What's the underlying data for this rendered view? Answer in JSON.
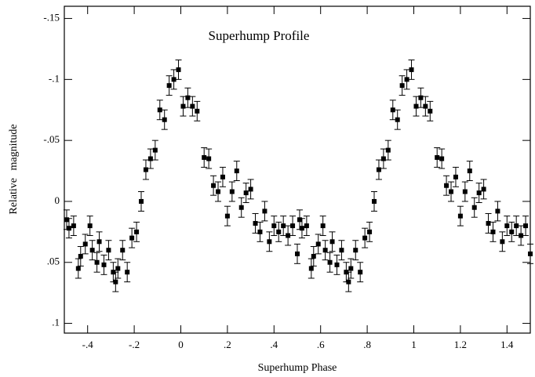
{
  "chart_data": {
    "type": "scatter",
    "title": "Superhump Profile",
    "xlabel": "Superhump Phase",
    "ylabel": "Relative magnitude",
    "x": [
      -0.49,
      -0.48,
      -0.46,
      -0.44,
      -0.43,
      -0.41,
      -0.39,
      -0.38,
      -0.36,
      -0.35,
      -0.33,
      -0.31,
      -0.29,
      -0.28,
      -0.27,
      -0.25,
      -0.23,
      -0.21,
      -0.19,
      -0.17,
      -0.15,
      -0.13,
      -0.11,
      -0.09,
      -0.07,
      -0.05,
      -0.03,
      -0.01,
      0.01,
      0.03,
      0.05,
      0.07,
      0.1,
      0.12,
      0.14,
      0.16,
      0.18,
      0.2,
      0.22,
      0.24,
      0.26,
      0.28,
      0.3,
      0.32,
      0.34,
      0.36,
      0.38,
      0.4,
      0.42,
      0.44,
      0.46,
      0.48,
      0.5,
      0.51,
      0.52,
      0.54,
      0.56,
      0.57,
      0.59,
      0.61,
      0.62,
      0.64,
      0.65,
      0.67,
      0.69,
      0.71,
      0.72,
      0.73,
      0.75,
      0.77,
      0.79,
      0.81,
      0.83,
      0.85,
      0.87,
      0.89,
      0.91,
      0.93,
      0.95,
      0.97,
      0.99,
      1.01,
      1.03,
      1.05,
      1.07,
      1.1,
      1.12,
      1.14,
      1.16,
      1.18,
      1.2,
      1.22,
      1.24,
      1.26,
      1.28,
      1.3,
      1.32,
      1.34,
      1.36,
      1.38,
      1.4,
      1.42,
      1.44,
      1.46,
      1.48,
      1.5
    ],
    "values": [
      0.015,
      0.022,
      0.02,
      0.055,
      0.045,
      0.035,
      0.02,
      0.04,
      0.05,
      0.033,
      0.052,
      0.04,
      0.058,
      0.066,
      0.055,
      0.04,
      0.058,
      0.03,
      0.025,
      0.0,
      -0.026,
      -0.035,
      -0.042,
      -0.075,
      -0.067,
      -0.095,
      -0.1,
      -0.108,
      -0.078,
      -0.085,
      -0.078,
      -0.074,
      -0.036,
      -0.035,
      -0.013,
      -0.008,
      -0.02,
      0.012,
      -0.008,
      -0.025,
      0.005,
      -0.007,
      -0.01,
      0.018,
      0.025,
      0.008,
      0.033,
      0.02,
      0.025,
      0.02,
      0.028,
      0.02,
      0.043,
      0.015,
      0.022,
      0.02,
      0.055,
      0.045,
      0.035,
      0.02,
      0.04,
      0.05,
      0.033,
      0.052,
      0.04,
      0.058,
      0.066,
      0.055,
      0.04,
      0.058,
      0.03,
      0.025,
      0.0,
      -0.026,
      -0.035,
      -0.042,
      -0.075,
      -0.067,
      -0.095,
      -0.1,
      -0.108,
      -0.078,
      -0.085,
      -0.078,
      -0.074,
      -0.036,
      -0.035,
      -0.013,
      -0.008,
      -0.02,
      0.012,
      -0.008,
      -0.025,
      0.005,
      -0.007,
      -0.01,
      0.018,
      0.025,
      0.008,
      0.033,
      0.02,
      0.025,
      0.02,
      0.028,
      0.02,
      0.043
    ],
    "error": 0.008,
    "color": "#000000",
    "xlim": [
      -0.5,
      1.5
    ],
    "ylim": [
      0.108,
      -0.16
    ],
    "y_inverted": true,
    "xticks": [
      {
        "value": -0.4,
        "label": "-.4"
      },
      {
        "value": -0.2,
        "label": "-.2"
      },
      0,
      {
        "value": 0.2,
        "label": ".2"
      },
      {
        "value": 0.4,
        "label": ".4"
      },
      {
        "value": 0.6,
        "label": ".6"
      },
      {
        "value": 0.8,
        "label": ".8"
      },
      1,
      1.2,
      1.4
    ],
    "yticks": [
      {
        "value": -0.15,
        "label": "-.15"
      },
      {
        "value": -0.1,
        "label": "-.1"
      },
      {
        "value": -0.05,
        "label": "-.05"
      },
      0,
      {
        "value": 0.05,
        "label": ".05"
      },
      {
        "value": 0.1,
        "label": ".1"
      }
    ]
  }
}
